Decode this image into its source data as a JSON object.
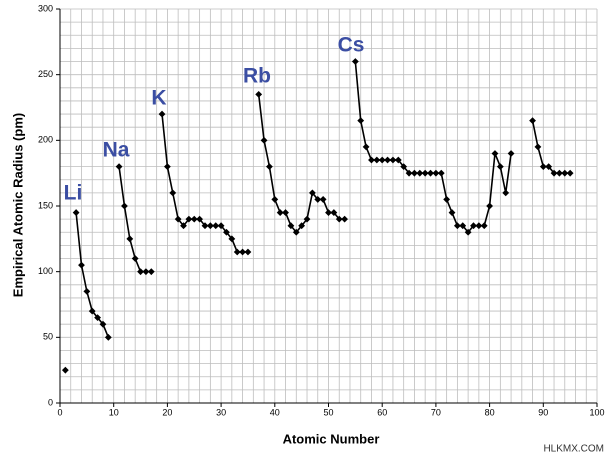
{
  "chart_data": {
    "type": "line",
    "x_label": "Atomic Number",
    "y_label": "Empirical Atomic Radius (pm)",
    "x": [
      1,
      2,
      3,
      4,
      5,
      6,
      7,
      8,
      9,
      10,
      11,
      12,
      13,
      14,
      15,
      16,
      17,
      18,
      19,
      20,
      21,
      22,
      23,
      24,
      25,
      26,
      27,
      28,
      29,
      30,
      31,
      32,
      33,
      34,
      35,
      36,
      37,
      38,
      39,
      40,
      41,
      42,
      43,
      44,
      45,
      46,
      47,
      48,
      49,
      50,
      51,
      52,
      53,
      54,
      55,
      56,
      57,
      58,
      59,
      60,
      61,
      62,
      63,
      64,
      65,
      66,
      67,
      68,
      69,
      70,
      71,
      72,
      73,
      74,
      75,
      76,
      77,
      78,
      79,
      80,
      81,
      82,
      83,
      84,
      85,
      86,
      87,
      88,
      89,
      90,
      91,
      92,
      93,
      94,
      95
    ],
    "series": [
      {
        "name": "Empirical Atomic Radius",
        "color": "#000000",
        "values": [
          25,
          null,
          145,
          105,
          85,
          70,
          65,
          60,
          50,
          null,
          180,
          150,
          125,
          110,
          100,
          100,
          100,
          null,
          220,
          180,
          160,
          140,
          135,
          140,
          140,
          140,
          135,
          135,
          135,
          135,
          130,
          125,
          115,
          115,
          115,
          null,
          235,
          200,
          180,
          155,
          145,
          145,
          135,
          130,
          135,
          140,
          160,
          155,
          155,
          145,
          145,
          140,
          140,
          null,
          260,
          215,
          195,
          185,
          185,
          185,
          185,
          185,
          185,
          180,
          175,
          175,
          175,
          175,
          175,
          175,
          175,
          155,
          145,
          135,
          135,
          130,
          135,
          135,
          135,
          150,
          190,
          180,
          160,
          190,
          null,
          null,
          null,
          215,
          195,
          180,
          180,
          175,
          175,
          175,
          175
        ]
      }
    ],
    "xlim": [
      0,
      100
    ],
    "xticks": [
      0,
      10,
      20,
      30,
      40,
      50,
      60,
      70,
      80,
      90,
      100
    ],
    "ylim": [
      0,
      300
    ],
    "yticks": [
      0,
      50,
      100,
      150,
      200,
      250,
      300
    ],
    "grid": true,
    "minor_grid": {
      "x": 2,
      "y": 10
    },
    "annotations": [
      "Li",
      "Na",
      "K",
      "Rb",
      "Cs"
    ],
    "watermark": "HLKMX.COM"
  }
}
